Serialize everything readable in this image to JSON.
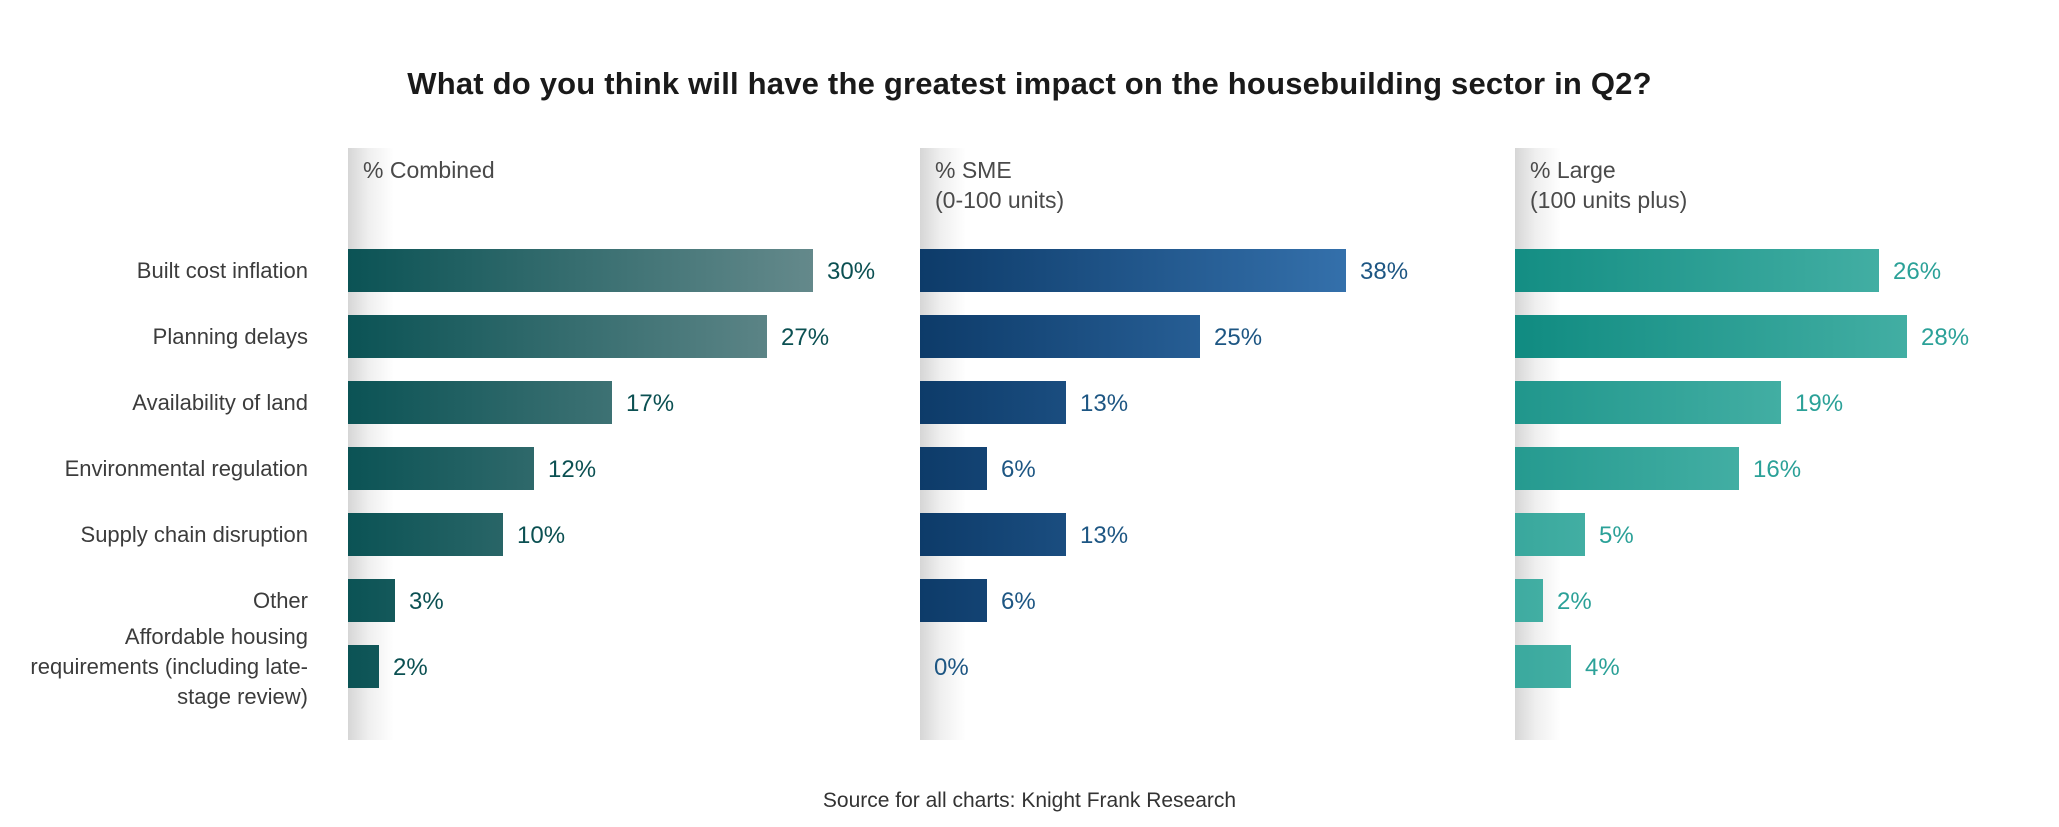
{
  "title": "What do you think will have the greatest impact on the housebuilding sector in Q2?",
  "source_note": "Source for all charts: Knight Frank Research",
  "chart_data": {
    "type": "bar",
    "orientation": "horizontal",
    "value_suffix": "%",
    "xlim": [
      0,
      40
    ],
    "grid": false,
    "legend": false,
    "categories": [
      "Built cost inflation",
      "Planning delays",
      "Availability of land",
      "Environmental regulation",
      "Supply chain disruption",
      "Other",
      "Affordable housing requirements (including late-stage review)"
    ],
    "panels": [
      {
        "title": "% Combined",
        "values": [
          30,
          27,
          17,
          12,
          10,
          3,
          2
        ],
        "bar_color_start": "#0B5355",
        "bar_color_end": "#64898B",
        "value_label_color": "#0B5052"
      },
      {
        "title": "% SME\n(0-100 units)",
        "values": [
          38,
          25,
          13,
          6,
          13,
          6,
          0
        ],
        "bar_color_start": "#0D3B69",
        "bar_color_end": "#3470AB",
        "value_label_color": "#1D5683"
      },
      {
        "title": "% Large\n(100 units plus)",
        "values": [
          26,
          28,
          19,
          16,
          5,
          2,
          4
        ],
        "bar_color_start": "#108B81",
        "bar_color_end": "#42AEA3",
        "value_label_color": "#2BA198"
      }
    ]
  }
}
